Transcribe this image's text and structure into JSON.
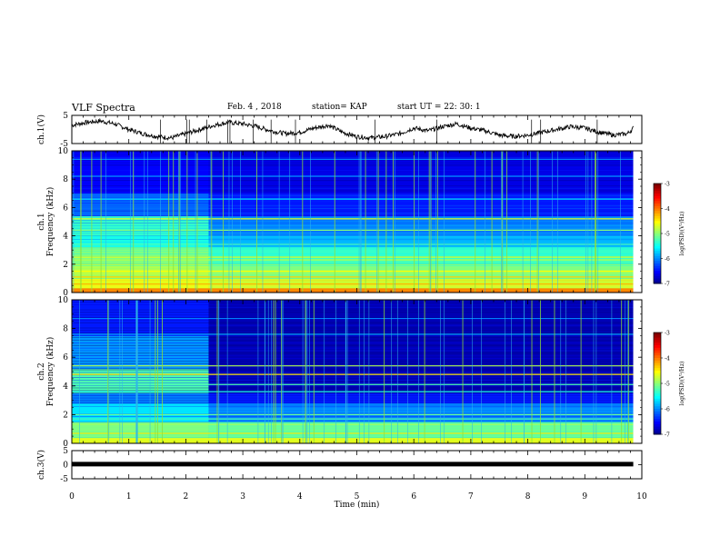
{
  "header": {
    "title": "VLF Spectra",
    "date": "Feb. 4 , 2018",
    "station": "station= KAP",
    "start_ut": "start UT =  22: 30: 1"
  },
  "chart_data": [
    {
      "type": "line",
      "name": "ch1-waveform",
      "ylabel": "ch.1(V)",
      "ylim": [
        -5,
        5
      ],
      "yticks": [
        5,
        -5
      ],
      "xlim": [
        0,
        10
      ],
      "x_end": 9.85,
      "color": "#000000",
      "x": [
        0,
        0.25,
        0.5,
        0.75,
        1.0,
        1.25,
        1.5,
        1.75,
        2.0,
        2.25,
        2.5,
        2.75,
        3.0,
        3.25,
        3.5,
        3.75,
        4.0,
        4.25,
        4.5,
        4.75,
        5.0,
        5.25,
        5.5,
        5.75,
        6.0,
        6.25,
        6.5,
        6.75,
        7.0,
        7.25,
        7.5,
        7.75,
        8.0,
        8.25,
        8.5,
        8.75,
        9.0,
        9.25,
        9.5,
        9.75,
        9.85
      ],
      "values": [
        1.5,
        2.5,
        3,
        2,
        0,
        -1.5,
        -2.5,
        -3,
        -1.5,
        0,
        1.5,
        2.5,
        2,
        1,
        -0.5,
        -1.5,
        -1,
        0.5,
        1.5,
        -1,
        -2.5,
        -3,
        -2.5,
        -1.5,
        0.5,
        -0.5,
        1,
        2,
        0.5,
        -0.5,
        -2,
        -2.5,
        -2,
        -1,
        0,
        1,
        0.5,
        -1,
        -2,
        -1.5,
        0.5
      ]
    },
    {
      "type": "heatmap",
      "name": "ch1-spectrogram",
      "ylabel": "ch.1\nFrequency (kHz)",
      "ylim": [
        0,
        10
      ],
      "yticks": [
        0,
        2,
        4,
        6,
        8,
        10
      ],
      "xlim": [
        0,
        10
      ],
      "x_end": 9.85,
      "change_at_min": 2.4,
      "colorbar": {
        "label": "log(PSD)(V²/Hz)",
        "range": [
          -7,
          -3
        ],
        "ticks": [
          "-3",
          "-4",
          "-5",
          "-6",
          "-7"
        ]
      },
      "band_levels_khz": [
        {
          "f0": 0.0,
          "f1": 0.3,
          "before": -4.0,
          "after": -4.0
        },
        {
          "f0": 0.3,
          "f1": 1.0,
          "before": -4.6,
          "after": -4.7
        },
        {
          "f0": 1.0,
          "f1": 2.0,
          "before": -4.8,
          "after": -5.0
        },
        {
          "f0": 2.0,
          "f1": 3.2,
          "before": -5.0,
          "after": -5.3
        },
        {
          "f0": 3.2,
          "f1": 4.0,
          "before": -5.4,
          "after": -5.8
        },
        {
          "f0": 4.0,
          "f1": 5.4,
          "before": -5.3,
          "after": -6.0
        },
        {
          "f0": 5.4,
          "f1": 7.0,
          "before": -6.1,
          "after": -6.4
        },
        {
          "f0": 7.0,
          "f1": 10.0,
          "before": -6.5,
          "after": -6.6
        }
      ],
      "tone_lines_khz": [
        {
          "f": 0.6,
          "level": -4.2
        },
        {
          "f": 1.1,
          "level": -4.3
        },
        {
          "f": 1.5,
          "level": -4.5
        },
        {
          "f": 2.3,
          "level": -4.8
        },
        {
          "f": 2.5,
          "level": -4.6
        },
        {
          "f": 3.4,
          "level": -5.2
        },
        {
          "f": 4.4,
          "level": -5.0
        },
        {
          "f": 5.2,
          "level": -4.6
        },
        {
          "f": 6.6,
          "level": -5.5
        },
        {
          "f": 8.2,
          "level": -5.9
        },
        {
          "f": 9.4,
          "level": -6.0
        }
      ]
    },
    {
      "type": "heatmap",
      "name": "ch2-spectrogram",
      "ylabel": "ch.2\nFrequency (kHz)",
      "ylim": [
        0,
        10
      ],
      "yticks": [
        0,
        2,
        4,
        6,
        8,
        10
      ],
      "xlim": [
        0,
        10
      ],
      "x_end": 9.85,
      "change_at_min": 2.4,
      "colorbar": {
        "label": "log(PSD)(V²/Hz)",
        "range": [
          -7,
          -3
        ],
        "ticks": [
          "-3",
          "-4",
          "-5",
          "-6",
          "-7"
        ]
      },
      "band_levels_khz": [
        {
          "f0": 0.0,
          "f1": 0.4,
          "before": -4.6,
          "after": -4.6
        },
        {
          "f0": 0.4,
          "f1": 1.5,
          "before": -5.0,
          "after": -5.1
        },
        {
          "f0": 1.5,
          "f1": 2.8,
          "before": -5.6,
          "after": -6.0
        },
        {
          "f0": 2.8,
          "f1": 3.5,
          "before": -6.0,
          "after": -6.4
        },
        {
          "f0": 3.5,
          "f1": 5.2,
          "before": -5.2,
          "after": -6.8
        },
        {
          "f0": 5.2,
          "f1": 7.5,
          "before": -5.9,
          "after": -6.8
        },
        {
          "f0": 7.5,
          "f1": 10.0,
          "before": -6.4,
          "after": -6.8
        }
      ],
      "tone_lines_khz": [
        {
          "f": 0.7,
          "level": -4.4
        },
        {
          "f": 1.3,
          "level": -4.9
        },
        {
          "f": 1.7,
          "level": -5.2
        },
        {
          "f": 2.0,
          "level": -5.1
        },
        {
          "f": 3.6,
          "level": -5.4
        },
        {
          "f": 4.1,
          "level": -5.2
        },
        {
          "f": 4.8,
          "level": -4.4
        },
        {
          "f": 5.4,
          "level": -4.8
        },
        {
          "f": 7.6,
          "level": -5.8
        },
        {
          "f": 8.7,
          "level": -6.0
        }
      ]
    },
    {
      "type": "line",
      "name": "ch3-waveform",
      "ylabel": "ch.3(V)",
      "ylim": [
        -5,
        5
      ],
      "yticks": [
        5,
        0,
        -5
      ],
      "xlim": [
        0,
        10
      ],
      "x_end": 9.85,
      "color": "#000000",
      "x": [
        0,
        9.85
      ],
      "values": [
        0.2,
        0.2
      ]
    }
  ],
  "x_axis": {
    "label": "Time (min)",
    "ticks": [
      "0",
      "1",
      "2",
      "3",
      "4",
      "5",
      "6",
      "7",
      "8",
      "9",
      "10"
    ]
  }
}
